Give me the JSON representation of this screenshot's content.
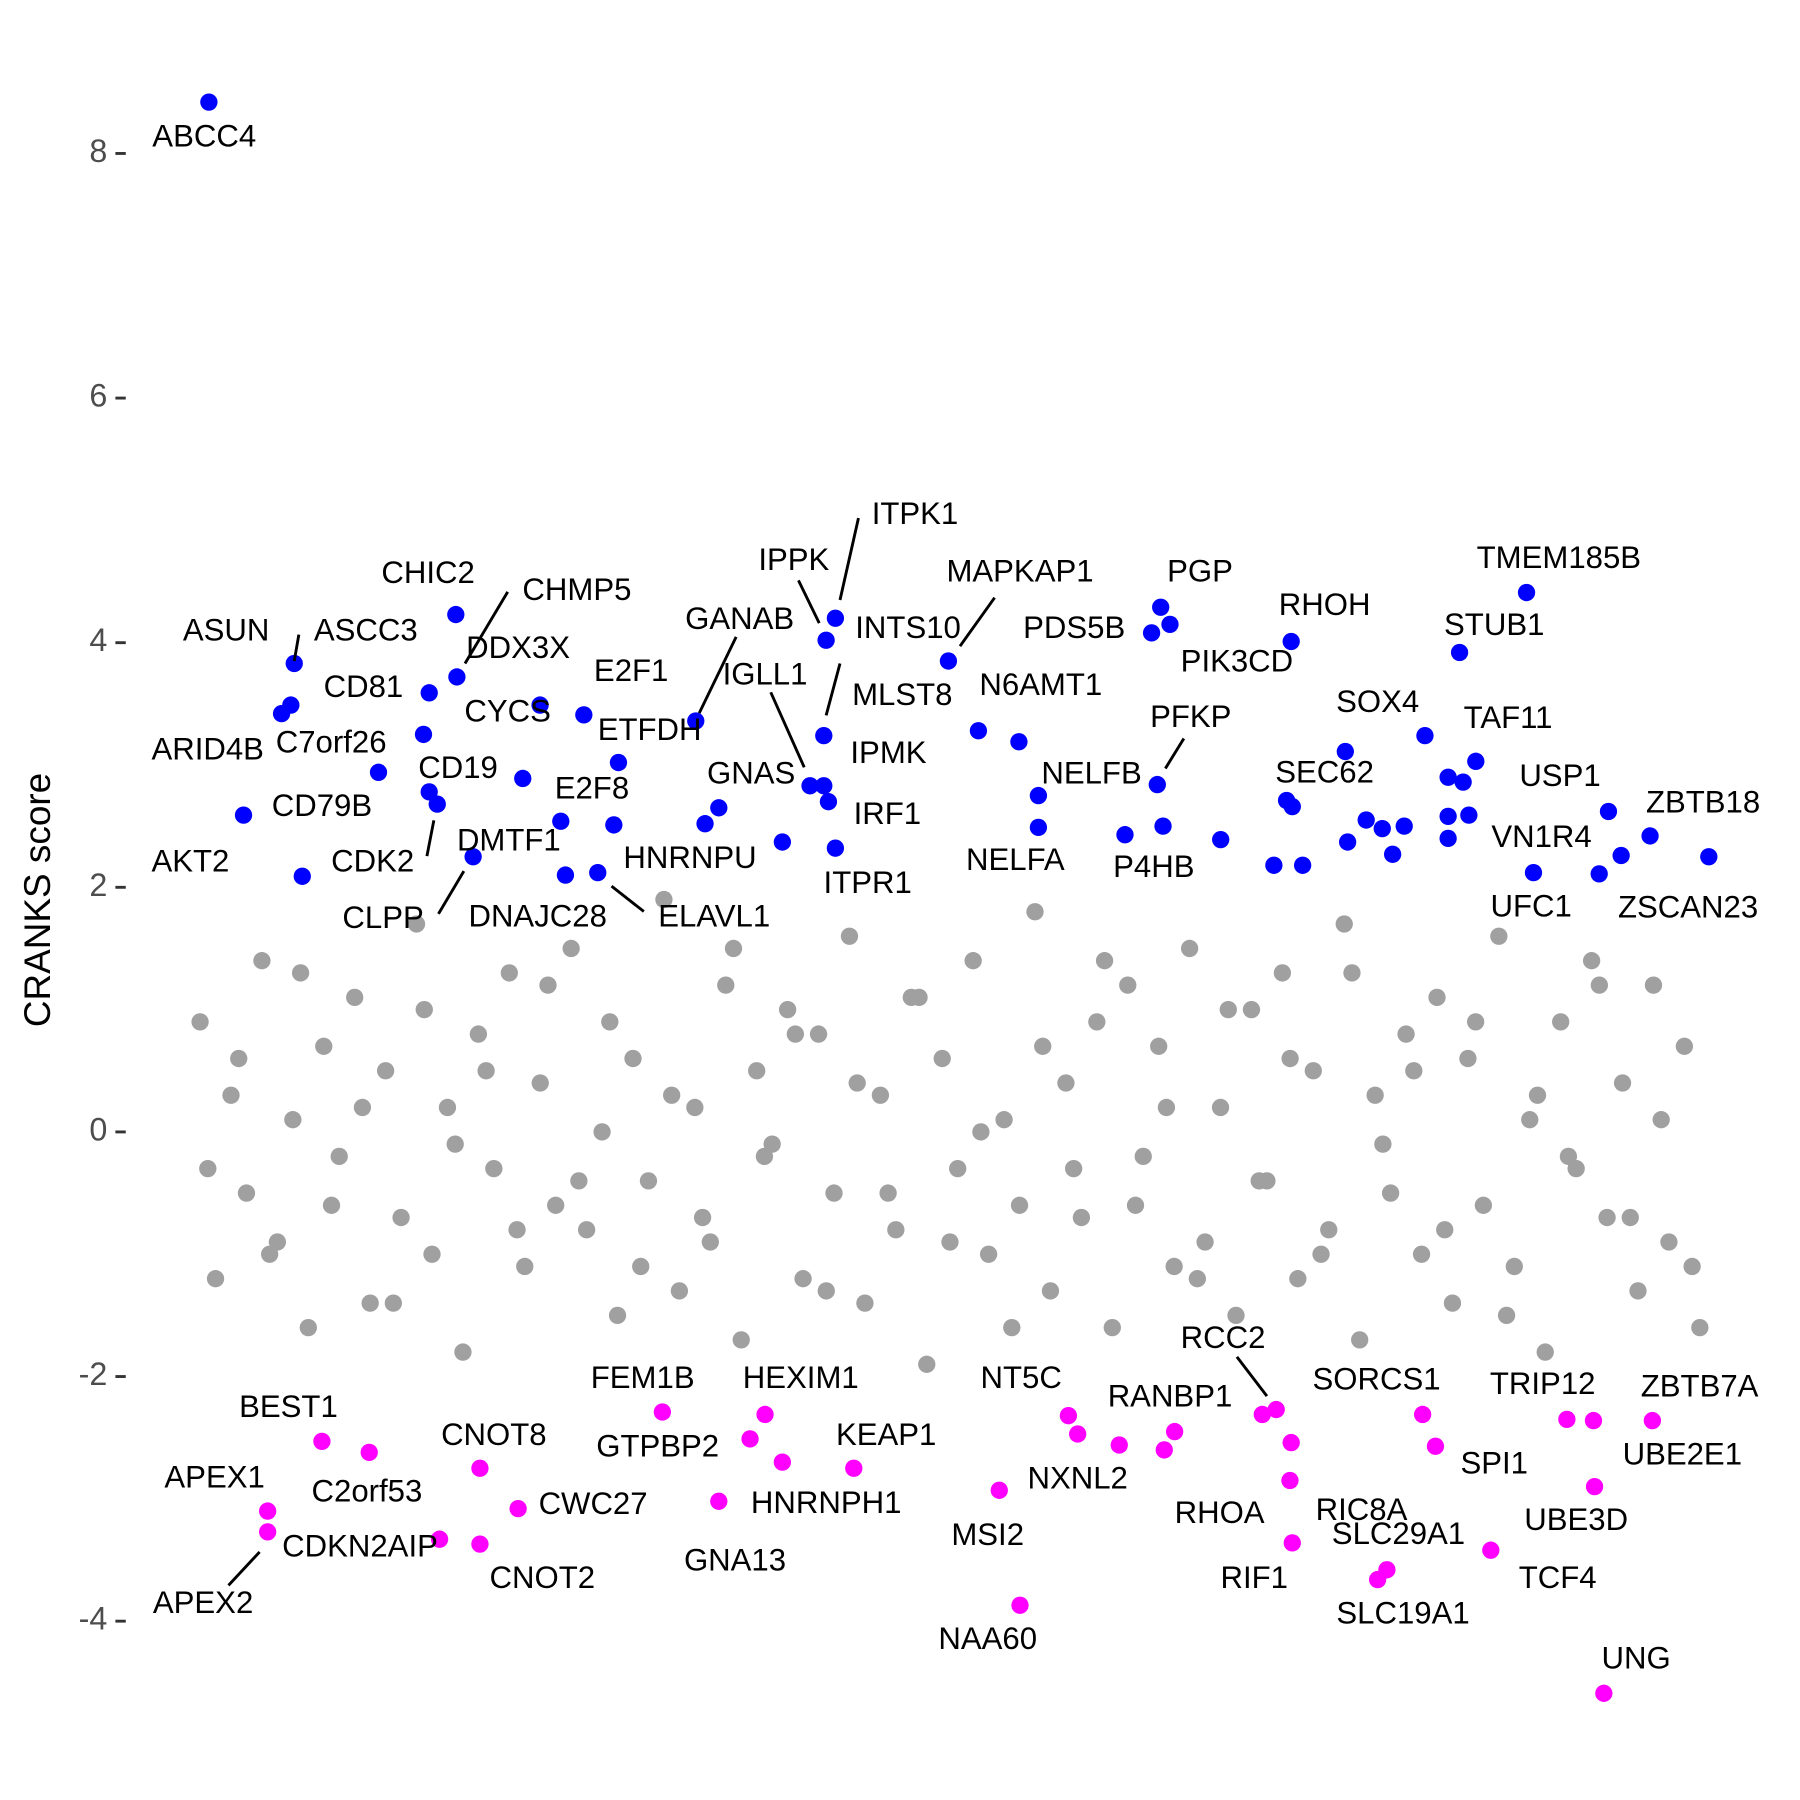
{
  "chart_data": {
    "type": "scatter",
    "ylabel": "CRANKS score",
    "xlim": [
      0,
      100
    ],
    "ylim": [
      -4.8,
      8.6
    ],
    "yticks": [
      -4,
      -2,
      0,
      2,
      4,
      6,
      8
    ],
    "grid": false,
    "series": [
      {
        "color": "#a0a0a0",
        "x": [
          1,
          2,
          3,
          4,
          5,
          6,
          7,
          8,
          9,
          10,
          11,
          12,
          13,
          14,
          15,
          16,
          17,
          18,
          19,
          20,
          21,
          22,
          23,
          24,
          25,
          26,
          27,
          28,
          29,
          30,
          31,
          32,
          33,
          34,
          35,
          36,
          37,
          38,
          39,
          40,
          41,
          42,
          43,
          44,
          45,
          46,
          47,
          48,
          49,
          50,
          51,
          52,
          53,
          54,
          55,
          56,
          57,
          58,
          59,
          60,
          61,
          62,
          63,
          64,
          65,
          66,
          67,
          68,
          69,
          70,
          71,
          72,
          73,
          74,
          75,
          76,
          77,
          78,
          79,
          80,
          81,
          82,
          83,
          84,
          85,
          86,
          87,
          88,
          89,
          90,
          91,
          92,
          93,
          94,
          95,
          96,
          97,
          98,
          1.5,
          3.5,
          5.5,
          7.5,
          9.5,
          11.5,
          13.5,
          15.5,
          17.5,
          19.5,
          21.5,
          23.5,
          25.5,
          27.5,
          29.5,
          31.5,
          33.5,
          35.5,
          37.5,
          39.5,
          41.5,
          43.5,
          45.5,
          47.5,
          49.5,
          51.5,
          53.5,
          55.5,
          57.5,
          59.5,
          61.5,
          63.5,
          65.5,
          67.5,
          69.5,
          71.5,
          73.5,
          75.5,
          77.5,
          79.5,
          81.5,
          83.5,
          85.5,
          87.5,
          89.5,
          91.5,
          93.5,
          95.5,
          97.5
        ],
        "values": [
          0.9,
          -1.2,
          0.3,
          -0.5,
          1.4,
          -0.9,
          0.1,
          -1.6,
          0.7,
          -0.2,
          1.1,
          -1.4,
          0.5,
          -0.7,
          1.7,
          -1.0,
          0.2,
          -1.8,
          0.8,
          -0.3,
          1.3,
          -1.1,
          0.4,
          -0.6,
          1.5,
          -0.8,
          0.0,
          -1.5,
          0.6,
          -0.4,
          1.9,
          -1.3,
          0.2,
          -0.9,
          1.2,
          -1.7,
          0.5,
          -0.1,
          1.0,
          -1.2,
          0.8,
          -0.5,
          1.6,
          -1.4,
          0.3,
          -0.8,
          1.1,
          -1.9,
          0.6,
          -0.3,
          1.4,
          -1.0,
          0.1,
          -0.6,
          1.8,
          -1.3,
          0.4,
          -0.7,
          0.9,
          -1.6,
          1.2,
          -0.2,
          0.7,
          -1.1,
          1.5,
          -0.9,
          0.2,
          -1.5,
          1.0,
          -0.4,
          1.3,
          -1.2,
          0.5,
          -0.8,
          1.7,
          -1.7,
          0.3,
          -0.5,
          0.8,
          -1.0,
          1.1,
          -1.4,
          0.6,
          -0.6,
          1.6,
          -1.1,
          0.1,
          -1.8,
          0.9,
          -0.3,
          1.4,
          -0.7,
          0.4,
          -1.3,
          1.2,
          -0.9,
          0.7,
          -1.6,
          -0.3,
          0.6,
          -1.0,
          1.3,
          -0.6,
          0.2,
          -1.4,
          1.0,
          -0.1,
          0.5,
          -0.8,
          1.2,
          -0.4,
          0.9,
          -1.1,
          0.3,
          -0.7,
          1.5,
          -0.2,
          0.8,
          -1.3,
          0.4,
          -0.5,
          1.1,
          -0.9,
          0.0,
          -1.6,
          0.7,
          -0.3,
          1.4,
          -0.6,
          0.2,
          -1.2,
          1.0,
          -0.4,
          0.6,
          -1.0,
          1.3,
          -0.1,
          0.5,
          -0.8,
          0.9,
          -1.5,
          0.3,
          -0.2,
          1.2,
          -0.7,
          0.1,
          -1.1
        ]
      },
      {
        "color": "#0000ff",
        "x": [
          1.57,
          7.09,
          6.87,
          6.27,
          12.54,
          3.81,
          7.61,
          17.54,
          17.61,
          21.87,
          15.82,
          22.99,
          15.45,
          15.82,
          16.34,
          18.66,
          25.82,
          28.06,
          24.33,
          24.63,
          33.66,
          26.72,
          33.06,
          40.45,
          34.55,
          41.49,
          42.09,
          41.34,
          41.34,
          41.64,
          38.66,
          42.09,
          49.4,
          53.96,
          55.22,
          55.22,
          63.13,
          62.54,
          63.73,
          62.91,
          63.28,
          71.57,
          71.27,
          75.07,
          86.79,
          82.46,
          83.51,
          92.09,
          83.06,
          94.78,
          87.24,
          91.49,
          27.76,
          51.34,
          67.01,
          70.45,
          71.64,
          72.31,
          75.22,
          76.42,
          77.46,
          78.13,
          78.88,
          80.22,
          81.72,
          81.72,
          81.72,
          82.69,
          92.91,
          98.58,
          60.82
        ],
        "values": [
          8.42,
          3.83,
          3.49,
          3.42,
          2.94,
          2.59,
          2.09,
          4.23,
          3.72,
          2.89,
          3.59,
          3.49,
          3.25,
          2.78,
          2.68,
          2.25,
          3.41,
          3.02,
          2.54,
          2.1,
          2.52,
          2.12,
          3.36,
          2.83,
          2.65,
          4.02,
          4.2,
          2.83,
          3.24,
          2.7,
          2.37,
          2.32,
          3.85,
          3.19,
          2.75,
          2.49,
          4.29,
          4.08,
          4.15,
          2.84,
          2.5,
          4.01,
          2.71,
          3.11,
          4.41,
          3.92,
          3.03,
          2.62,
          2.59,
          2.42,
          2.12,
          2.11,
          2.51,
          3.28,
          2.39,
          2.18,
          2.66,
          2.18,
          2.37,
          2.55,
          2.48,
          2.27,
          2.5,
          3.24,
          2.9,
          2.58,
          2.4,
          2.86,
          2.26,
          2.25,
          2.43
        ],
        "labels": [
          "ABCC4",
          "ASCC3",
          "ASUN",
          "ARID4B",
          "C7orf26",
          "CD79B",
          "AKT2",
          "CHIC2",
          "CHMP5",
          "DDX3X",
          "CD81",
          "CYCS",
          "CD19",
          "CDK2",
          "DMTF1",
          "CLPP",
          "E2F1",
          "ETFDH",
          "E2F8",
          "DNAJC28",
          "HNRNPU",
          "ELAVL1",
          "GANAB",
          "IGLL1",
          "GNAS",
          "IPPK",
          "ITPK1",
          "INTS10",
          "MLST8",
          "IPMK",
          "IRF1",
          "ITPR1",
          "MAPKAP1",
          "N6AMT1",
          "NELFB",
          "NELFA",
          "PGP",
          "PDS5B",
          "PIK3CD",
          "PFKP",
          "P4HB",
          "RHOH",
          "SEC62",
          "SOX4",
          "TMEM185B",
          "STUB1",
          "TAF11",
          "USP1",
          "VN1R4",
          "ZBTB18",
          "UFC1",
          "ZSCAN23",
          null,
          null,
          null,
          null,
          null,
          null,
          null,
          null,
          null,
          null,
          null,
          null,
          null,
          null,
          null,
          null,
          null,
          null,
          null
        ]
      },
      {
        "color": "#ff00ff",
        "x": [
          8.88,
          11.94,
          5.37,
          5.37,
          16.49,
          19.1,
          21.57,
          19.1,
          30.9,
          36.57,
          37.54,
          43.28,
          34.55,
          38.66,
          57.16,
          57.76,
          52.69,
          54.03,
          64.03,
          70.6,
          69.7,
          80.07,
          71.49,
          71.64,
          77.76,
          77.16,
          80.9,
          89.4,
          94.93,
          91.12,
          91.19,
          84.48,
          91.79,
          60.45,
          63.36,
          71.57
        ],
        "values": [
          -2.53,
          -2.62,
          -3.1,
          -3.27,
          -3.33,
          -2.75,
          -3.08,
          -3.37,
          -2.29,
          -2.51,
          -2.31,
          -2.75,
          -3.02,
          -2.7,
          -2.32,
          -2.47,
          -2.93,
          -3.87,
          -2.45,
          -2.27,
          -2.31,
          -2.31,
          -2.85,
          -3.36,
          -3.58,
          -3.66,
          -2.57,
          -2.35,
          -2.36,
          -2.36,
          -2.9,
          -3.42,
          -4.59,
          -2.56,
          -2.6,
          -2.54
        ],
        "labels": [
          "BEST1",
          "C2orf53",
          "APEX1",
          "APEX2",
          "CDKN2AIP",
          "CNOT8",
          "CWC27",
          "CNOT2",
          "FEM1B",
          "GTPBP2",
          "HEXIM1",
          "KEAP1",
          "HNRNPH1",
          "GNA13",
          "NT5C",
          "NXNL2",
          "MSI2",
          "NAA60",
          "RANBP1",
          "RCC2",
          "RHOA",
          "SORCS1",
          "RIC8A",
          "RIF1",
          "SLC29A1",
          "SLC19A1",
          "SPI1",
          "TRIP12",
          "ZBTB7A",
          "UBE2E1",
          "UBE3D",
          "TCF4",
          "UNG",
          null,
          null,
          null
        ]
      }
    ]
  }
}
